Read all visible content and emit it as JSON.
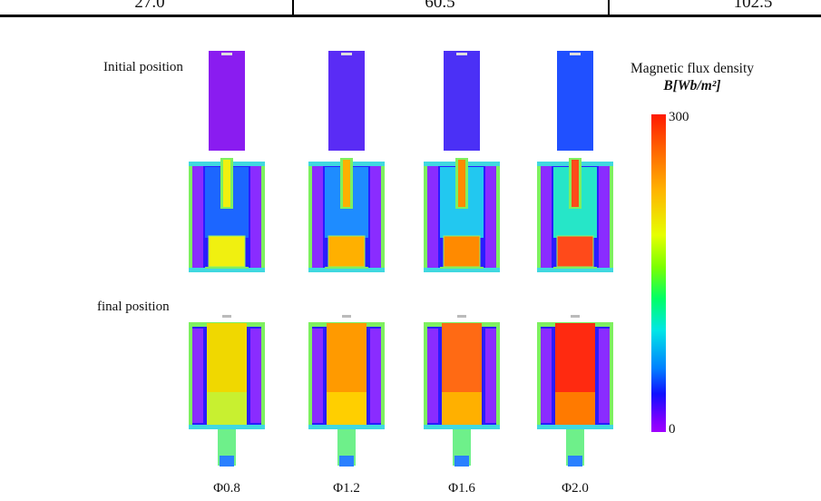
{
  "table_row": {
    "cells": [
      "27.0",
      "60.5",
      "102.5"
    ]
  },
  "labels": {
    "initial": "Initial position",
    "final": "final position"
  },
  "captions": [
    "Φ0.8",
    "Φ1.2",
    "Φ1.6",
    "Φ2.0"
  ],
  "legend": {
    "title": "Magnetic flux density",
    "unit": "B[Wb/m²]",
    "max": "300",
    "min": "0"
  },
  "colors": {
    "initial_rod": [
      "#8a1cf0",
      "#5a2cf5",
      "#4b30f6",
      "#2050ff"
    ],
    "initial_core": [
      "#f0f010",
      "#ffb000",
      "#ff8a00",
      "#ff4a1a"
    ],
    "initial_inner": [
      "#1c66ff",
      "#1e8cff",
      "#22c8f0",
      "#26e6c8"
    ],
    "final_core": [
      "#f0d800",
      "#ff9a00",
      "#ff6a14",
      "#ff2a10"
    ],
    "final_lower": [
      "#c8f030",
      "#ffcf00",
      "#ffb000",
      "#ff7a00"
    ]
  }
}
